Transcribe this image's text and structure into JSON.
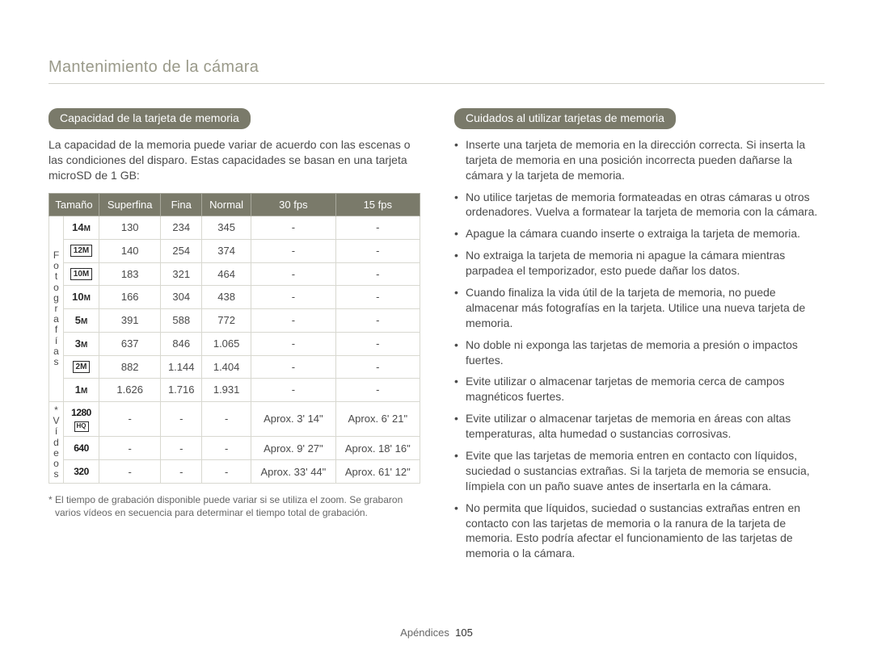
{
  "page_title": "Mantenimiento de la cámara",
  "left": {
    "heading": "Capacidad de la tarjeta de memoria",
    "intro": "La capacidad de la memoria puede variar de acuerdo con las escenas o las condiciones del disparo. Estas capacidades se basan en una tarjeta microSD de 1 GB:",
    "table": {
      "headers": [
        "Tamaño",
        "Superfina",
        "Fina",
        "Normal",
        "30 fps",
        "15 fps"
      ],
      "side_photo_label": "F o t o g r a f í a s",
      "side_video_label": "* V í d e o s",
      "photo_rows": [
        {
          "size_text": "14",
          "size_suffix": "M",
          "boxed": false,
          "superfina": "130",
          "fina": "234",
          "normal": "345",
          "fps30": "-",
          "fps15": "-"
        },
        {
          "size_text": "12M",
          "size_suffix": "",
          "boxed": true,
          "superfina": "140",
          "fina": "254",
          "normal": "374",
          "fps30": "-",
          "fps15": "-"
        },
        {
          "size_text": "10M",
          "size_suffix": "",
          "boxed": true,
          "superfina": "183",
          "fina": "321",
          "normal": "464",
          "fps30": "-",
          "fps15": "-"
        },
        {
          "size_text": "10",
          "size_suffix": "M",
          "boxed": false,
          "superfina": "166",
          "fina": "304",
          "normal": "438",
          "fps30": "-",
          "fps15": "-"
        },
        {
          "size_text": "5",
          "size_suffix": "M",
          "boxed": false,
          "superfina": "391",
          "fina": "588",
          "normal": "772",
          "fps30": "-",
          "fps15": "-"
        },
        {
          "size_text": "3",
          "size_suffix": "M",
          "boxed": false,
          "superfina": "637",
          "fina": "846",
          "normal": "1.065",
          "fps30": "-",
          "fps15": "-"
        },
        {
          "size_text": "2M",
          "size_suffix": "",
          "boxed": true,
          "superfina": "882",
          "fina": "1.144",
          "normal": "1.404",
          "fps30": "-",
          "fps15": "-"
        },
        {
          "size_text": "1",
          "size_suffix": "M",
          "boxed": false,
          "superfina": "1.626",
          "fina": "1.716",
          "normal": "1.931",
          "fps30": "-",
          "fps15": "-"
        }
      ],
      "video_rows": [
        {
          "size_label": "1280",
          "sub": "HQ",
          "superfina": "-",
          "fina": "-",
          "normal": "-",
          "fps30": "Aprox. 3' 14\"",
          "fps15": "Aprox. 6' 21\""
        },
        {
          "size_label": "640",
          "sub": "",
          "superfina": "-",
          "fina": "-",
          "normal": "-",
          "fps30": "Aprox. 9' 27\"",
          "fps15": "Aprox. 18' 16\""
        },
        {
          "size_label": "320",
          "sub": "",
          "superfina": "-",
          "fina": "-",
          "normal": "-",
          "fps30": "Aprox. 33' 44\"",
          "fps15": "Aprox. 61' 12\""
        }
      ]
    },
    "footnote": "* El tiempo de grabación disponible puede variar si se utiliza el zoom. Se grabaron varios vídeos en secuencia para determinar el tiempo total de grabación."
  },
  "right": {
    "heading": "Cuidados al utilizar tarjetas de memoria",
    "items": [
      "Inserte una tarjeta de memoria en la dirección correcta. Si inserta la tarjeta de memoria en una posición incorrecta pueden dañarse la cámara y la tarjeta de memoria.",
      "No utilice tarjetas de memoria formateadas en otras cámaras u otros ordenadores. Vuelva a formatear la tarjeta de memoria con la cámara.",
      "Apague la cámara cuando inserte o extraiga la tarjeta de memoria.",
      "No extraiga la tarjeta de memoria ni apague la cámara mientras parpadea el temporizador, esto puede dañar los datos.",
      "Cuando finaliza la vida útil de la tarjeta de memoria, no puede almacenar más fotografías en la tarjeta. Utilice una nueva tarjeta de memoria.",
      "No doble ni exponga las tarjetas de memoria a presión o impactos fuertes.",
      "Evite utilizar o almacenar tarjetas de memoria cerca de campos magnéticos fuertes.",
      "Evite utilizar o almacenar tarjetas de memoria en áreas con altas temperaturas, alta humedad o sustancias corrosivas.",
      "Evite que las tarjetas de memoria entren en contacto con líquidos, suciedad o sustancias extrañas. Si la tarjeta de memoria se ensucia, límpiela con un paño suave antes de insertarla en la cámara.",
      "No permita que líquidos, suciedad o sustancias extrañas entren en contacto con las tarjetas de memoria o la ranura de la tarjeta de memoria. Esto podría afectar el funcionamiento de las tarjetas de memoria o la cámara."
    ]
  },
  "footer": {
    "section": "Apéndices",
    "page": "105"
  },
  "colors": {
    "pill_bg": "#7a7a6a",
    "pill_text": "#ffffff",
    "title_color": "#9a9a8a",
    "border_color": "#d8d8d0",
    "text_color": "#4a4a4a"
  }
}
